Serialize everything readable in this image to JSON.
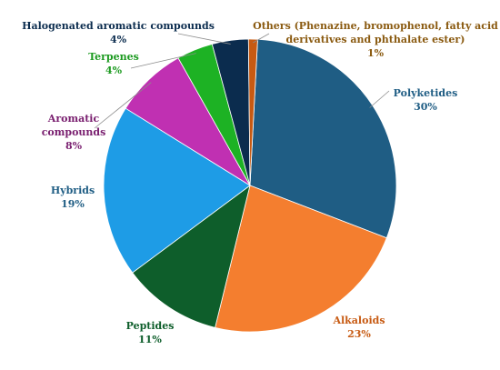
{
  "chart_data": {
    "type": "pie",
    "title": "",
    "slices": [
      {
        "name": "Polyketides",
        "value": 30,
        "label": "30%",
        "color": "#1F5D84"
      },
      {
        "name": "Alkaloids",
        "value": 23,
        "label": "23%",
        "color": "#F47E2F"
      },
      {
        "name": "Peptides",
        "value": 11,
        "label": "11%",
        "color": "#0E5E2B"
      },
      {
        "name": "Hybrids",
        "value": 19,
        "label": "19%",
        "color": "#1E9CE6"
      },
      {
        "name": "Aromatic compounds",
        "value": 8,
        "label": "8%",
        "color": "#C030B2"
      },
      {
        "name": "Terpenes",
        "value": 4,
        "label": "4%",
        "color": "#1DB224"
      },
      {
        "name": "Halogenated aromatic compounds",
        "value": 4,
        "label": "4%",
        "color": "#0B2C4E"
      },
      {
        "name": "Others (Phenazine, bromophenol, fatty acid derivatives and phthalate ester)",
        "value": 1,
        "label": "1%",
        "color": "#C75A12"
      }
    ],
    "labels": [
      {
        "lines": [
          "Polyketides",
          "30%"
        ],
        "color": "#1F5D84"
      },
      {
        "lines": [
          "Alkaloids",
          "23%"
        ],
        "color": "#C75A12"
      },
      {
        "lines": [
          "Peptides",
          "11%"
        ],
        "color": "#0E5E2B"
      },
      {
        "lines": [
          "Hybrids",
          "19%"
        ],
        "color": "#1F5D84"
      },
      {
        "lines": [
          "Aromatic",
          "compounds",
          "8%"
        ],
        "color": "#7A2070"
      },
      {
        "lines": [
          "Terpenes",
          "4%"
        ],
        "color": "#1C9A20"
      },
      {
        "lines": [
          "Halogenated aromatic compounds",
          "4%"
        ],
        "color": "#0B2C4E"
      },
      {
        "lines": [
          "Others (Phenazine, bromophenol, fatty acid",
          "derivatives and phthalate ester)",
          "1%"
        ],
        "color": "#8A5A10"
      }
    ]
  }
}
